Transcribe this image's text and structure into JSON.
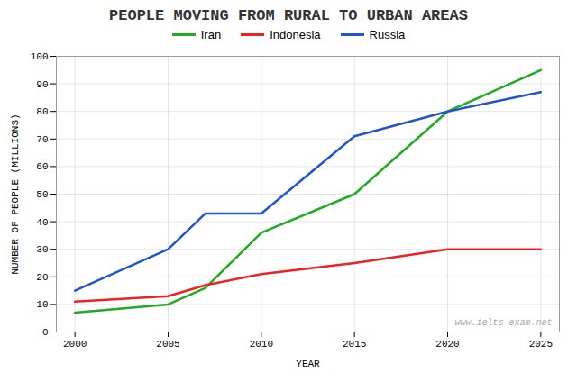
{
  "chart_data": {
    "type": "line",
    "title": "PEOPLE MOVING FROM RURAL TO URBAN AREAS",
    "xlabel": "YEAR",
    "ylabel": "NUMBER OF PEOPLE (MILLIONS)",
    "x": [
      2000,
      2005,
      2007,
      2010,
      2015,
      2020,
      2025
    ],
    "series": [
      {
        "name": "Iran",
        "color": "#22aa22",
        "values": [
          7,
          10,
          16,
          36,
          50,
          80,
          95
        ]
      },
      {
        "name": "Indonesia",
        "color": "#ee2222",
        "values": [
          11,
          13,
          17,
          21,
          25,
          30,
          30
        ]
      },
      {
        "name": "Russia",
        "color": "#2255cc",
        "values": [
          15,
          30,
          43,
          43,
          71,
          80,
          87
        ]
      }
    ],
    "xlim": [
      1999,
      2026
    ],
    "ylim": [
      0,
      100
    ],
    "xticks": [
      2000,
      2005,
      2010,
      2015,
      2020,
      2025
    ],
    "yticks": [
      0,
      10,
      20,
      30,
      40,
      50,
      60,
      70,
      80,
      90,
      100
    ],
    "grid": true,
    "legend": "top",
    "annotations": [
      "www.ielts-exam.net"
    ]
  }
}
